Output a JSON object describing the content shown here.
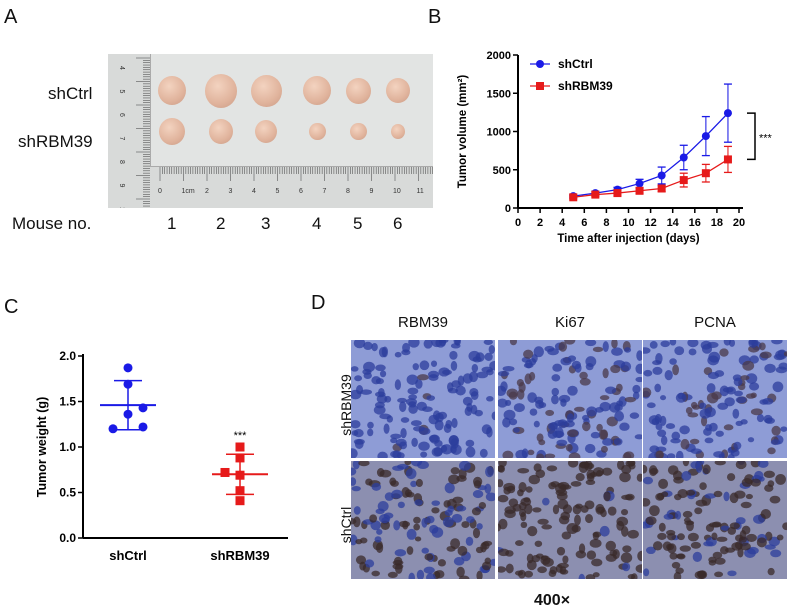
{
  "panels": {
    "A": {
      "letter": "A",
      "row_labels": [
        "shCtrl",
        "shRBM39"
      ],
      "mouse_label": "Mouse no.",
      "mouse_numbers": [
        "1",
        "2",
        "3",
        "4",
        "5",
        "6"
      ],
      "ruler_h_ticks": [
        "0",
        "1cm",
        "2",
        "3",
        "4",
        "5",
        "6",
        "7",
        "8",
        "9",
        "10",
        "11"
      ],
      "ruler_v_ticks": [
        "4",
        "5",
        "6",
        "7",
        "8",
        "9",
        "10"
      ]
    },
    "B": {
      "letter": "B"
    },
    "C": {
      "letter": "C"
    },
    "D": {
      "letter": "D",
      "columns": [
        "RBM39",
        "Ki67",
        "PCNA"
      ],
      "rows": [
        "shRBM39",
        "shCtrl"
      ],
      "magnification": "400×"
    }
  },
  "chart_data": [
    {
      "type": "line",
      "title": "",
      "xlabel": "Time after injection (days)",
      "ylabel": "Tumor volume (mm²)",
      "xlim": [
        0,
        20
      ],
      "ylim": [
        0,
        2000
      ],
      "xticks": [
        0,
        2,
        4,
        6,
        8,
        10,
        12,
        14,
        16,
        18,
        20
      ],
      "yticks": [
        0,
        500,
        1000,
        1500,
        2000
      ],
      "x": [
        5,
        7,
        9,
        11,
        13,
        15,
        17,
        19
      ],
      "series": [
        {
          "name": "shCtrl",
          "color": "#1a1ae6",
          "marker": "circle",
          "values": [
            155,
            195,
            240,
            320,
            425,
            660,
            940,
            1240
          ],
          "errors": [
            20,
            25,
            30,
            55,
            110,
            160,
            255,
            380
          ]
        },
        {
          "name": "shRBM39",
          "color": "#e61a1a",
          "marker": "square",
          "values": [
            140,
            175,
            195,
            225,
            255,
            365,
            455,
            635
          ],
          "errors": [
            20,
            20,
            25,
            35,
            40,
            90,
            115,
            170
          ]
        }
      ],
      "legend": "top-left",
      "annotation": "***",
      "grid": false
    },
    {
      "type": "scatter",
      "title": "",
      "xlabel": "",
      "ylabel": "Tumor weight (g)",
      "categories": [
        "shCtrl",
        "shRBM39"
      ],
      "ylim": [
        0,
        2.0
      ],
      "yticks": [
        "0.0",
        "0.5",
        "1.0",
        "1.5",
        "2.0"
      ],
      "series": [
        {
          "name": "shCtrl",
          "color": "#1a1ae6",
          "marker": "circle",
          "points": [
            1.87,
            1.69,
            1.43,
            1.36,
            1.22,
            1.2
          ],
          "mean": 1.46,
          "sd_upper": 1.73,
          "sd_lower": 1.19
        },
        {
          "name": "shRBM39",
          "color": "#e61a1a",
          "marker": "square",
          "points": [
            1.0,
            0.88,
            0.72,
            0.69,
            0.52,
            0.41
          ],
          "mean": 0.7,
          "sd_upper": 0.92,
          "sd_lower": 0.48
        }
      ],
      "annotation": "***",
      "grid": false
    }
  ]
}
